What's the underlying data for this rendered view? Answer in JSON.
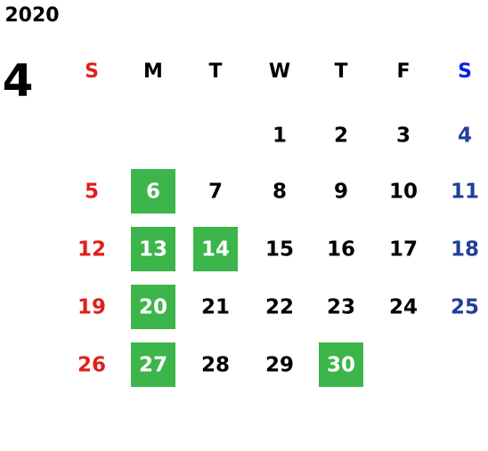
{
  "calendar": {
    "year": "2020",
    "month": "4",
    "weekdays": [
      "S",
      "M",
      "T",
      "W",
      "T",
      "F",
      "S"
    ],
    "weeks": [
      [
        null,
        null,
        null,
        1,
        2,
        3,
        4
      ],
      [
        5,
        6,
        7,
        8,
        9,
        10,
        11
      ],
      [
        12,
        13,
        14,
        15,
        16,
        17,
        18
      ],
      [
        19,
        20,
        21,
        22,
        23,
        24,
        25
      ],
      [
        26,
        27,
        28,
        29,
        30,
        null,
        null
      ]
    ],
    "highlighted": [
      6,
      13,
      14,
      20,
      27,
      30
    ],
    "highlight_color": "#3cb54a",
    "sunday_color": "#e0201a",
    "saturday_color": "#1f3f9a",
    "saturday_header_color": "#0a1ee6"
  }
}
